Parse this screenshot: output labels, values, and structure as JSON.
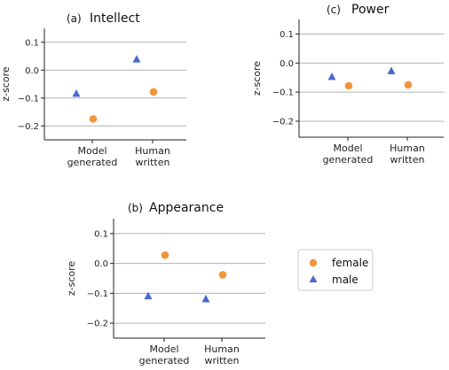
{
  "colors": {
    "female": "#f0953a",
    "male": "#4a68cc"
  },
  "legend": {
    "items": [
      {
        "key": "female",
        "label": "female",
        "marker": "circle"
      },
      {
        "key": "male",
        "label": "male",
        "marker": "triangle"
      }
    ]
  },
  "chart_data": [
    {
      "id": "intellect",
      "type": "scatter",
      "panel_letter": "(a)",
      "title": "Intellect",
      "ylabel": "z-score",
      "xlabel": "",
      "categories": [
        [
          "Model",
          "generated"
        ],
        [
          "Human",
          "written"
        ]
      ],
      "ylim": [
        -0.25,
        0.15
      ],
      "yticks": [
        -0.2,
        -0.1,
        0.0,
        0.1
      ],
      "ytick_labels": [
        "−0.2",
        "−0.1",
        "0.0",
        "0.1"
      ],
      "grid": true,
      "series": [
        {
          "name": "female",
          "values": [
            -0.175,
            -0.078
          ]
        },
        {
          "name": "male",
          "values": [
            -0.085,
            0.038
          ]
        }
      ]
    },
    {
      "id": "power",
      "type": "scatter",
      "panel_letter": "(c)",
      "title": "Power",
      "ylabel": "z-score",
      "xlabel": "",
      "categories": [
        [
          "Model",
          "generated"
        ],
        [
          "Human",
          "written"
        ]
      ],
      "ylim": [
        -0.255,
        0.15
      ],
      "yticks": [
        -0.2,
        -0.1,
        0.0,
        0.1
      ],
      "ytick_labels": [
        "−0.2",
        "−0.1",
        "0.0",
        "0.1"
      ],
      "grid": true,
      "series": [
        {
          "name": "female",
          "values": [
            -0.078,
            -0.075
          ]
        },
        {
          "name": "male",
          "values": [
            -0.048,
            -0.028
          ]
        }
      ]
    },
    {
      "id": "appearance",
      "type": "scatter",
      "panel_letter": "(b)",
      "title": "Appearance",
      "ylabel": "z-score",
      "xlabel": "",
      "categories": [
        [
          "Model",
          "generated"
        ],
        [
          "Human",
          "written"
        ]
      ],
      "ylim": [
        -0.25,
        0.15
      ],
      "yticks": [
        -0.2,
        -0.1,
        0.0,
        0.1
      ],
      "ytick_labels": [
        "−0.2",
        "−0.1",
        "0.0",
        "0.1"
      ],
      "grid": true,
      "series": [
        {
          "name": "female",
          "values": [
            0.028,
            -0.038
          ]
        },
        {
          "name": "male",
          "values": [
            -0.11,
            -0.12
          ]
        }
      ]
    }
  ]
}
